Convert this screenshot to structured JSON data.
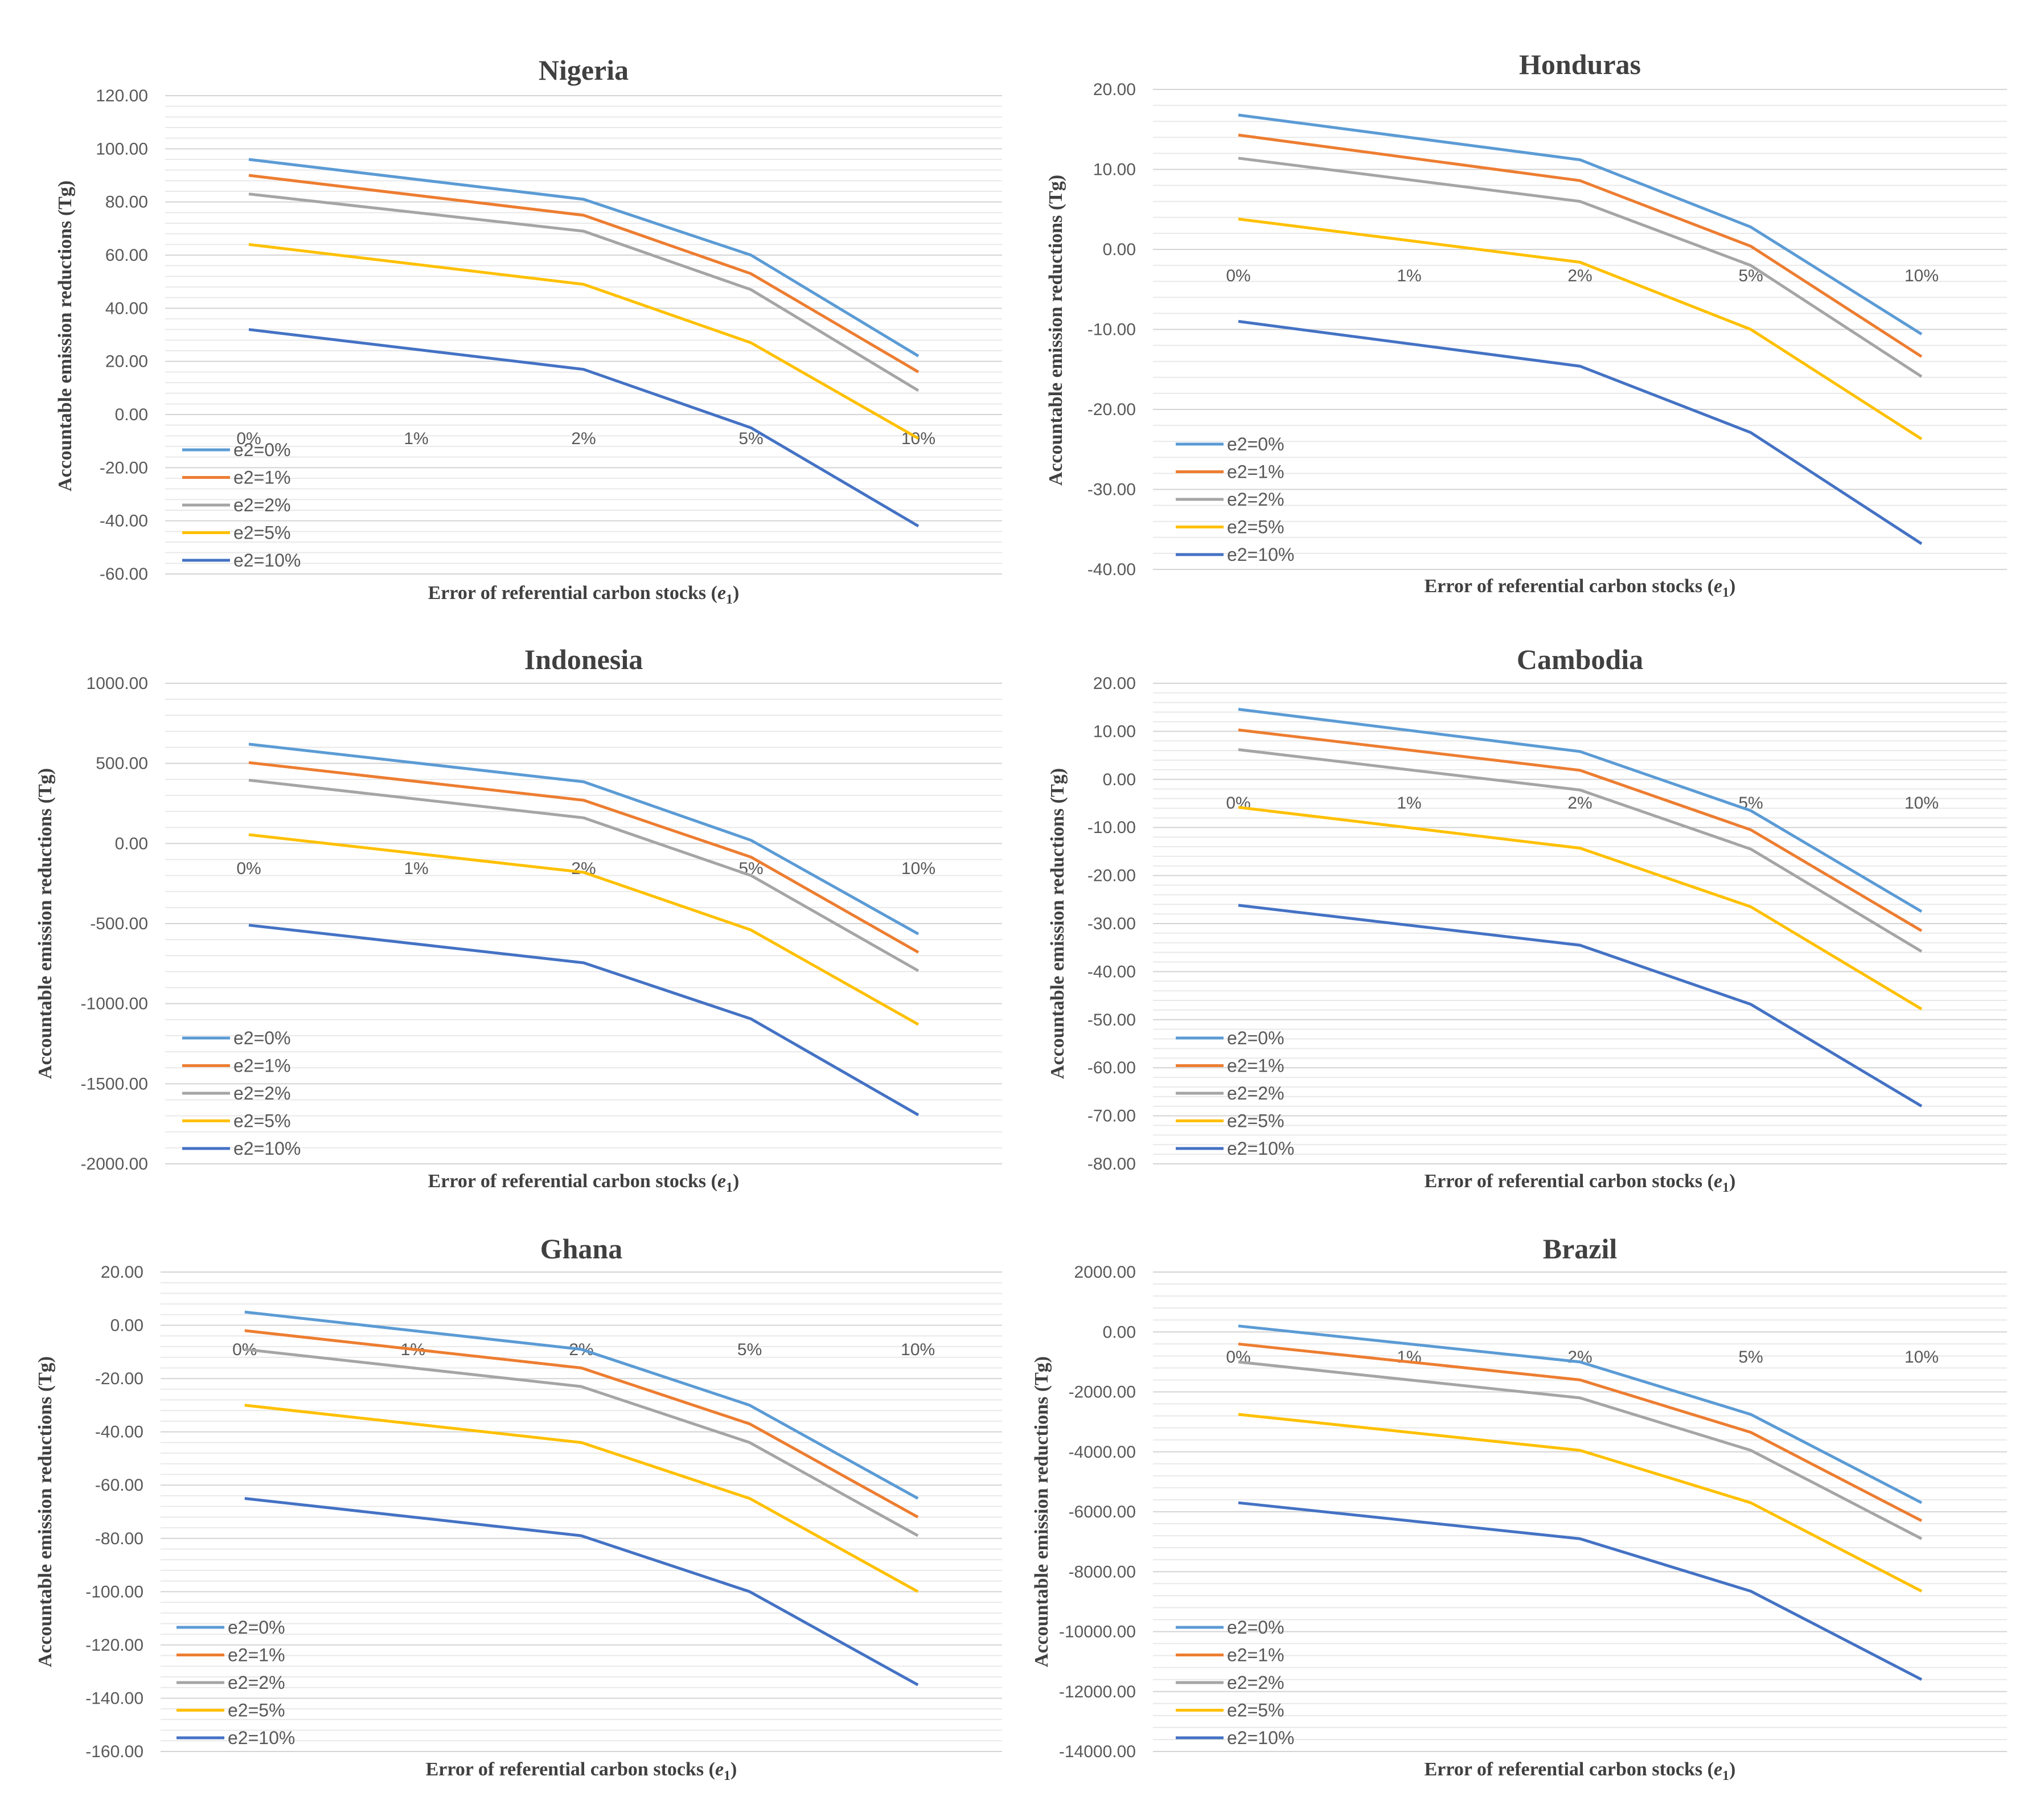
{
  "chart_data": [
    {
      "type": "line",
      "title": "Nigeria",
      "xlabel": "Error  of referential carbon  stocks (e1)",
      "ylabel": "Accountable  emission reductions  (Tg)",
      "categories": [
        "0%",
        "1%",
        "2%",
        "5%",
        "10%"
      ],
      "x_positions": [
        0,
        1,
        2,
        3,
        4
      ],
      "y_ticks": [
        "120.00",
        "100.00",
        "80.00",
        "60.00",
        "40.00",
        "20.00",
        "0.00",
        "-20.00",
        "-40.00",
        "-60.00"
      ],
      "ylim": [
        -60,
        120
      ],
      "series": [
        {
          "name": "e2=0%",
          "points": [
            [
              0,
              96
            ],
            [
              2,
              81
            ],
            [
              3,
              60
            ],
            [
              4,
              22
            ]
          ]
        },
        {
          "name": "e2=1%",
          "points": [
            [
              0,
              90
            ],
            [
              2,
              75
            ],
            [
              3,
              53
            ],
            [
              4,
              16
            ]
          ]
        },
        {
          "name": "e2=2%",
          "points": [
            [
              0,
              83
            ],
            [
              2,
              69
            ],
            [
              3,
              47
            ],
            [
              4,
              9
            ]
          ]
        },
        {
          "name": "e2=5%",
          "points": [
            [
              0,
              64
            ],
            [
              2,
              49
            ],
            [
              3,
              27
            ],
            [
              4,
              -9
            ]
          ]
        },
        {
          "name": "e2=10%",
          "points": [
            [
              0,
              32
            ],
            [
              2,
              17
            ],
            [
              3,
              -5
            ],
            [
              4,
              -42
            ]
          ]
        }
      ]
    },
    {
      "type": "line",
      "title": "Honduras",
      "xlabel": "Error  of referential carbon  stocks (e1)",
      "ylabel": "Accountable  emission reductions  (Tg)",
      "categories": [
        "0%",
        "1%",
        "2%",
        "5%",
        "10%"
      ],
      "x_positions": [
        0,
        1,
        2,
        3,
        4
      ],
      "y_ticks": [
        "20.00",
        "10.00",
        "0.00",
        "-10.00",
        "-20.00",
        "-30.00",
        "-40.00"
      ],
      "ylim": [
        -40,
        20
      ],
      "series": [
        {
          "name": "e2=0%",
          "points": [
            [
              0,
              16.8
            ],
            [
              2,
              11.2
            ],
            [
              3,
              2.8
            ],
            [
              4,
              -10.6
            ]
          ]
        },
        {
          "name": "e2=1%",
          "points": [
            [
              0,
              14.3
            ],
            [
              2,
              8.6
            ],
            [
              3,
              0.4
            ],
            [
              4,
              -13.4
            ]
          ]
        },
        {
          "name": "e2=2%",
          "points": [
            [
              0,
              11.4
            ],
            [
              2,
              6.0
            ],
            [
              3,
              -2.0
            ],
            [
              4,
              -15.9
            ]
          ]
        },
        {
          "name": "e2=5%",
          "points": [
            [
              0,
              3.8
            ],
            [
              2,
              -1.6
            ],
            [
              3,
              -10.0
            ],
            [
              4,
              -23.7
            ]
          ]
        },
        {
          "name": "e2=10%",
          "points": [
            [
              0,
              -9.0
            ],
            [
              2,
              -14.6
            ],
            [
              3,
              -22.9
            ],
            [
              4,
              -36.8
            ]
          ]
        }
      ]
    },
    {
      "type": "line",
      "title": "Indonesia",
      "xlabel": "Error  of referential carbon  stocks (e1)",
      "ylabel": "Accountable  emission reductions  (Tg)",
      "categories": [
        "0%",
        "1%",
        "2%",
        "5%",
        "10%"
      ],
      "x_positions": [
        0,
        1,
        2,
        3,
        4
      ],
      "y_ticks": [
        "1000.00",
        "500.00",
        "0.00",
        "-500.00",
        "-1000.00",
        "-1500.00",
        "-2000.00"
      ],
      "ylim": [
        -2000,
        1000
      ],
      "series": [
        {
          "name": "e2=0%",
          "points": [
            [
              0,
              620
            ],
            [
              2,
              385
            ],
            [
              3,
              20
            ],
            [
              4,
              -565
            ]
          ]
        },
        {
          "name": "e2=1%",
          "points": [
            [
              0,
              505
            ],
            [
              2,
              270
            ],
            [
              3,
              -85
            ],
            [
              4,
              -680
            ]
          ]
        },
        {
          "name": "e2=2%",
          "points": [
            [
              0,
              395
            ],
            [
              2,
              160
            ],
            [
              3,
              -200
            ],
            [
              4,
              -795
            ]
          ]
        },
        {
          "name": "e2=5%",
          "points": [
            [
              0,
              55
            ],
            [
              2,
              -180
            ],
            [
              3,
              -540
            ],
            [
              4,
              -1130
            ]
          ]
        },
        {
          "name": "e2=10%",
          "points": [
            [
              0,
              -510
            ],
            [
              2,
              -745
            ],
            [
              3,
              -1095
            ],
            [
              4,
              -1695
            ]
          ]
        }
      ]
    },
    {
      "type": "line",
      "title": "Cambodia",
      "xlabel": "Error  of referential carbon  stocks (e1)",
      "ylabel": "Accountable  emission reductions  (Tg)",
      "categories": [
        "0%",
        "1%",
        "2%",
        "5%",
        "10%"
      ],
      "x_positions": [
        0,
        1,
        2,
        3,
        4
      ],
      "y_ticks": [
        "20.00",
        "10.00",
        "0.00",
        "-10.00",
        "-20.00",
        "-30.00",
        "-40.00",
        "-50.00",
        "-60.00",
        "-70.00",
        "-80.00"
      ],
      "ylim": [
        -80,
        20
      ],
      "series": [
        {
          "name": "e2=0%",
          "points": [
            [
              0,
              14.6
            ],
            [
              2,
              5.8
            ],
            [
              3,
              -6.5
            ],
            [
              4,
              -27.5
            ]
          ]
        },
        {
          "name": "e2=1%",
          "points": [
            [
              0,
              10.3
            ],
            [
              2,
              1.9
            ],
            [
              3,
              -10.5
            ],
            [
              4,
              -31.5
            ]
          ]
        },
        {
          "name": "e2=2%",
          "points": [
            [
              0,
              6.2
            ],
            [
              2,
              -2.2
            ],
            [
              3,
              -14.5
            ],
            [
              4,
              -35.8
            ]
          ]
        },
        {
          "name": "e2=5%",
          "points": [
            [
              0,
              -5.8
            ],
            [
              2,
              -14.3
            ],
            [
              3,
              -26.5
            ],
            [
              4,
              -47.8
            ]
          ]
        },
        {
          "name": "e2=10%",
          "points": [
            [
              0,
              -26.2
            ],
            [
              2,
              -34.5
            ],
            [
              3,
              -46.8
            ],
            [
              4,
              -68.0
            ]
          ]
        }
      ]
    },
    {
      "type": "line",
      "title": "Ghana",
      "xlabel": "Error  of referential carbon  stocks (e1)",
      "ylabel": "Accountable  emission reductions  (Tg)",
      "categories": [
        "0%",
        "1%",
        "2%",
        "5%",
        "10%"
      ],
      "x_positions": [
        0,
        1,
        2,
        3,
        4
      ],
      "y_ticks": [
        "20.00",
        "0.00",
        "-20.00",
        "-40.00",
        "-60.00",
        "-80.00",
        "-100.00",
        "-120.00",
        "-140.00",
        "-160.00"
      ],
      "ylim": [
        -160,
        20
      ],
      "series": [
        {
          "name": "e2=0%",
          "points": [
            [
              0,
              5
            ],
            [
              2,
              -9
            ],
            [
              3,
              -30
            ],
            [
              4,
              -65
            ]
          ]
        },
        {
          "name": "e2=1%",
          "points": [
            [
              0,
              -2
            ],
            [
              2,
              -16
            ],
            [
              3,
              -37
            ],
            [
              4,
              -72
            ]
          ]
        },
        {
          "name": "e2=2%",
          "points": [
            [
              0,
              -9
            ],
            [
              2,
              -23
            ],
            [
              3,
              -44
            ],
            [
              4,
              -79
            ]
          ]
        },
        {
          "name": "e2=5%",
          "points": [
            [
              0,
              -30
            ],
            [
              2,
              -44
            ],
            [
              3,
              -65
            ],
            [
              4,
              -100
            ]
          ]
        },
        {
          "name": "e2=10%",
          "points": [
            [
              0,
              -65
            ],
            [
              2,
              -79
            ],
            [
              3,
              -100
            ],
            [
              4,
              -135
            ]
          ]
        }
      ]
    },
    {
      "type": "line",
      "title": "Brazil",
      "xlabel": "Error  of referential carbon  stocks (e1)",
      "ylabel": "Accountable  emission reductions  (Tg)",
      "categories": [
        "0%",
        "1%",
        "2%",
        "5%",
        "10%"
      ],
      "x_positions": [
        0,
        1,
        2,
        3,
        4
      ],
      "y_ticks": [
        "2000.00",
        "0.00",
        "-2000.00",
        "-4000.00",
        "-6000.00",
        "-8000.00",
        "-10000.00",
        "-12000.00",
        "-14000.00"
      ],
      "ylim": [
        -14000,
        2000
      ],
      "series": [
        {
          "name": "e2=0%",
          "points": [
            [
              0,
              200
            ],
            [
              2,
              -1000
            ],
            [
              3,
              -2750
            ],
            [
              4,
              -5700
            ]
          ]
        },
        {
          "name": "e2=1%",
          "points": [
            [
              0,
              -400
            ],
            [
              2,
              -1600
            ],
            [
              3,
              -3350
            ],
            [
              4,
              -6300
            ]
          ]
        },
        {
          "name": "e2=2%",
          "points": [
            [
              0,
              -1000
            ],
            [
              2,
              -2200
            ],
            [
              3,
              -3950
            ],
            [
              4,
              -6900
            ]
          ]
        },
        {
          "name": "e2=5%",
          "points": [
            [
              0,
              -2750
            ],
            [
              2,
              -3950
            ],
            [
              3,
              -5700
            ],
            [
              4,
              -8650
            ]
          ]
        },
        {
          "name": "e2=10%",
          "points": [
            [
              0,
              -5700
            ],
            [
              2,
              -6900
            ],
            [
              3,
              -8650
            ],
            [
              4,
              -11600
            ]
          ]
        }
      ]
    }
  ],
  "colors": {
    "e2=0%": "#5b9bd5",
    "e2=1%": "#ed7d31",
    "e2=2%": "#a5a5a5",
    "e2=5%": "#ffc000",
    "e2=10%": "#4472c4",
    "text": "#595959",
    "title": "#404040"
  }
}
